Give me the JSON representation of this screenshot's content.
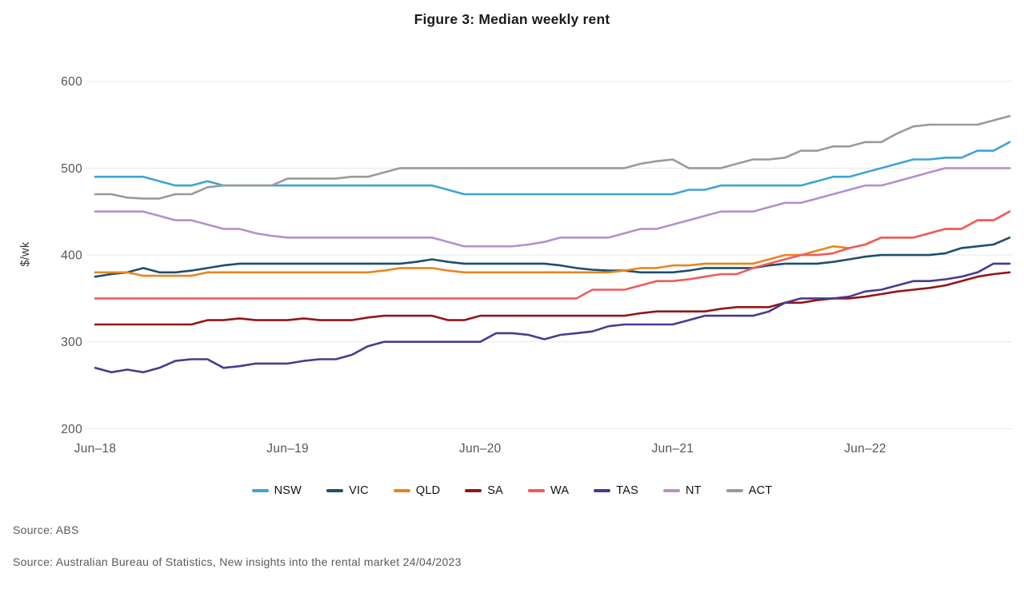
{
  "title": "Figure 3: Median weekly rent",
  "sources": {
    "line1": "Source: ABS",
    "line2": "Source: Australian Bureau of Statistics, New insights into the rental market 24/04/2023"
  },
  "chart_data": {
    "type": "line",
    "title": "Figure 3: Median weekly rent",
    "xlabel": "",
    "ylabel": "$/wk",
    "ylim": [
      200,
      600
    ],
    "y_ticks": [
      600,
      500,
      400,
      300,
      200
    ],
    "grid": "horizontal",
    "legend_position": "bottom",
    "x_interval": "monthly",
    "x_start": "Jun-18",
    "x_end": "Mar-23",
    "n_points": 58,
    "x_ticks": [
      {
        "label": "Jun–18",
        "index": 0
      },
      {
        "label": "Jun–19",
        "index": 12
      },
      {
        "label": "Jun–20",
        "index": 24
      },
      {
        "label": "Jun–21",
        "index": 36
      },
      {
        "label": "Jun–22",
        "index": 48
      }
    ],
    "series": [
      {
        "name": "NSW",
        "color": "#3EA3D7",
        "values": [
          490,
          490,
          490,
          490,
          485,
          480,
          480,
          485,
          480,
          480,
          480,
          480,
          480,
          480,
          480,
          480,
          480,
          480,
          480,
          480,
          480,
          480,
          475,
          470,
          470,
          470,
          470,
          470,
          470,
          470,
          470,
          470,
          470,
          470,
          470,
          470,
          470,
          475,
          475,
          480,
          480,
          480,
          480,
          480,
          480,
          485,
          490,
          490,
          495,
          500,
          505,
          510,
          510,
          512,
          512,
          520,
          520,
          530
        ]
      },
      {
        "name": "VIC",
        "color": "#1C4F6E",
        "values": [
          375,
          378,
          380,
          385,
          380,
          380,
          382,
          385,
          388,
          390,
          390,
          390,
          390,
          390,
          390,
          390,
          390,
          390,
          390,
          390,
          392,
          395,
          392,
          390,
          390,
          390,
          390,
          390,
          390,
          388,
          385,
          383,
          382,
          382,
          380,
          380,
          380,
          382,
          385,
          385,
          385,
          385,
          388,
          390,
          390,
          390,
          392,
          395,
          398,
          400,
          400,
          400,
          400,
          402,
          408,
          410,
          412,
          420
        ]
      },
      {
        "name": "QLD",
        "color": "#E8861B",
        "values": [
          380,
          380,
          380,
          376,
          376,
          376,
          376,
          380,
          380,
          380,
          380,
          380,
          380,
          380,
          380,
          380,
          380,
          380,
          382,
          385,
          385,
          385,
          382,
          380,
          380,
          380,
          380,
          380,
          380,
          380,
          380,
          380,
          380,
          382,
          385,
          385,
          388,
          388,
          390,
          390,
          390,
          390,
          395,
          400,
          400,
          405,
          410,
          408,
          412,
          420,
          420,
          420,
          425,
          430,
          430,
          440,
          440,
          450
        ]
      },
      {
        "name": "SA",
        "color": "#921518",
        "values": [
          320,
          320,
          320,
          320,
          320,
          320,
          320,
          325,
          325,
          327,
          325,
          325,
          325,
          327,
          325,
          325,
          325,
          328,
          330,
          330,
          330,
          330,
          325,
          325,
          330,
          330,
          330,
          330,
          330,
          330,
          330,
          330,
          330,
          330,
          333,
          335,
          335,
          335,
          335,
          338,
          340,
          340,
          340,
          345,
          345,
          348,
          350,
          350,
          352,
          355,
          358,
          360,
          362,
          365,
          370,
          375,
          378,
          380
        ]
      },
      {
        "name": "WA",
        "color": "#F4595C",
        "values": [
          350,
          350,
          350,
          350,
          350,
          350,
          350,
          350,
          350,
          350,
          350,
          350,
          350,
          350,
          350,
          350,
          350,
          350,
          350,
          350,
          350,
          350,
          350,
          350,
          350,
          350,
          350,
          350,
          350,
          350,
          350,
          360,
          360,
          360,
          365,
          370,
          370,
          372,
          375,
          378,
          378,
          385,
          390,
          395,
          400,
          400,
          402,
          408,
          412,
          420,
          420,
          420,
          425,
          430,
          430,
          440,
          440,
          450
        ]
      },
      {
        "name": "TAS",
        "color": "#473A8F",
        "values": [
          270,
          265,
          268,
          265,
          270,
          278,
          280,
          280,
          270,
          272,
          275,
          275,
          275,
          278,
          280,
          280,
          285,
          295,
          300,
          300,
          300,
          300,
          300,
          300,
          300,
          310,
          310,
          308,
          303,
          308,
          310,
          312,
          318,
          320,
          320,
          320,
          320,
          325,
          330,
          330,
          330,
          330,
          335,
          345,
          350,
          350,
          350,
          352,
          358,
          360,
          365,
          370,
          370,
          372,
          375,
          380,
          390,
          390
        ]
      },
      {
        "name": "NT",
        "color": "#B58FC9",
        "values": [
          450,
          450,
          450,
          450,
          445,
          440,
          440,
          435,
          430,
          430,
          425,
          422,
          420,
          420,
          420,
          420,
          420,
          420,
          420,
          420,
          420,
          420,
          415,
          410,
          410,
          410,
          410,
          412,
          415,
          420,
          420,
          420,
          420,
          425,
          430,
          430,
          435,
          440,
          445,
          450,
          450,
          450,
          455,
          460,
          460,
          465,
          470,
          475,
          480,
          480,
          485,
          490,
          495,
          500,
          500,
          500,
          500,
          500
        ]
      },
      {
        "name": "ACT",
        "color": "#9A9A9A",
        "values": [
          470,
          470,
          466,
          465,
          465,
          470,
          470,
          478,
          480,
          480,
          480,
          480,
          488,
          488,
          488,
          488,
          490,
          490,
          495,
          500,
          500,
          500,
          500,
          500,
          500,
          500,
          500,
          500,
          500,
          500,
          500,
          500,
          500,
          500,
          505,
          508,
          510,
          500,
          500,
          500,
          505,
          510,
          510,
          512,
          520,
          520,
          525,
          525,
          530,
          530,
          540,
          548,
          550,
          550,
          550,
          550,
          555,
          560
        ]
      }
    ]
  }
}
